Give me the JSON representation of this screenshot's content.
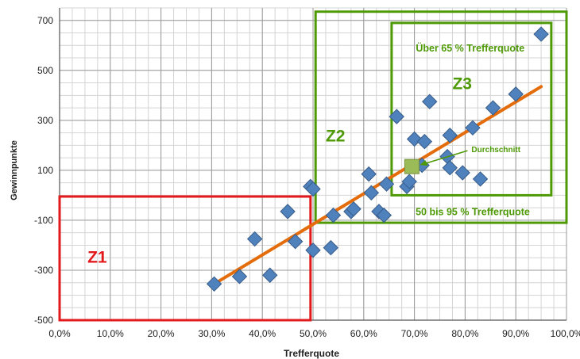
{
  "chart_data": {
    "type": "scatter",
    "title": "",
    "xlabel": "Trefferquote",
    "ylabel": "Gewinnpunkte",
    "xlim": [
      0,
      100
    ],
    "ylim": [
      -500,
      750
    ],
    "x_ticks": [
      0,
      10,
      20,
      30,
      40,
      50,
      60,
      70,
      80,
      90,
      100
    ],
    "x_tick_labels": [
      "0,0%",
      "10,0%",
      "20,0%",
      "30,0%",
      "40,0%",
      "50,0%",
      "60,0%",
      "70,0%",
      "80,0%",
      "90,0%",
      "100,0%"
    ],
    "y_ticks": [
      -500,
      -300,
      -100,
      100,
      300,
      500,
      700
    ],
    "y_tick_labels": [
      "-500",
      "-300",
      "-100",
      "100",
      "300",
      "500",
      "700"
    ],
    "grid": true,
    "series": [
      {
        "marker": "diamond",
        "color": "#4f81bd",
        "points": [
          [
            30.5,
            -355
          ],
          [
            35.5,
            -325
          ],
          [
            38.5,
            -175
          ],
          [
            41.5,
            -320
          ],
          [
            45,
            -65
          ],
          [
            46.5,
            -185
          ],
          [
            49.5,
            35
          ],
          [
            50,
            25
          ],
          [
            50,
            -220
          ],
          [
            53.5,
            -210
          ],
          [
            54,
            -80
          ],
          [
            57.5,
            -65
          ],
          [
            58,
            -55
          ],
          [
            61,
            85
          ],
          [
            61.5,
            10
          ],
          [
            63,
            -65
          ],
          [
            64,
            -80
          ],
          [
            64.5,
            45
          ],
          [
            66.5,
            315
          ],
          [
            68.5,
            35
          ],
          [
            69,
            55
          ],
          [
            70,
            225
          ],
          [
            71.5,
            120
          ],
          [
            72,
            215
          ],
          [
            73,
            375
          ],
          [
            76.5,
            155
          ],
          [
            77,
            240
          ],
          [
            77,
            110
          ],
          [
            79.5,
            90
          ],
          [
            81.5,
            270
          ],
          [
            83,
            65
          ],
          [
            85.5,
            350
          ],
          [
            90,
            405
          ],
          [
            95,
            645
          ]
        ]
      }
    ],
    "trendline": {
      "color": "#e46c0a",
      "from": [
        30.5,
        -355
      ],
      "to": [
        95,
        435
      ]
    },
    "average_point": {
      "x": 69.5,
      "y": 115,
      "color": "#9bbb59",
      "label": "Durchschnitt"
    },
    "zones": [
      {
        "label": "Z1",
        "x": [
          0,
          49.5
        ],
        "y": [
          -500,
          -5
        ],
        "color": "#e31a1c"
      },
      {
        "label": "Z2",
        "x": [
          50.5,
          100
        ],
        "y": [
          -110,
          735
        ],
        "color": "#4e9a06",
        "caption": "50 bis 95 % Trefferquote"
      },
      {
        "label": "Z3",
        "x": [
          65.5,
          97
        ],
        "y": [
          0,
          690
        ],
        "color": "#4e9a06",
        "caption": "Über 65 % Trefferquote"
      }
    ]
  }
}
